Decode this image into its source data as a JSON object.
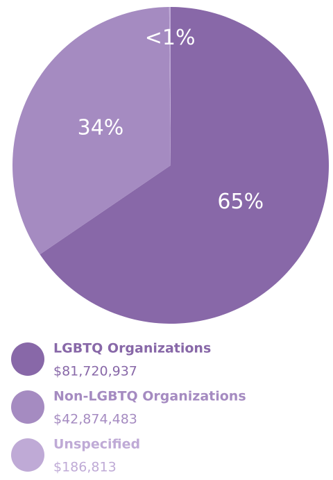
{
  "chart_data": {
    "type": "pie",
    "categories": [
      "LGBTQ Organizations",
      "Non-LGBTQ Organizations",
      "Unspecified"
    ],
    "values": [
      65.49,
      34.36,
      0.15
    ],
    "value_labels": [
      "65%",
      "34%",
      "<1%"
    ],
    "colors": [
      "#8868a8",
      "#a58bc1",
      "#bfaad6"
    ],
    "amounts": [
      "$81,720,937",
      "$42,874,483",
      "$186,813"
    ],
    "legend": "bottom"
  }
}
